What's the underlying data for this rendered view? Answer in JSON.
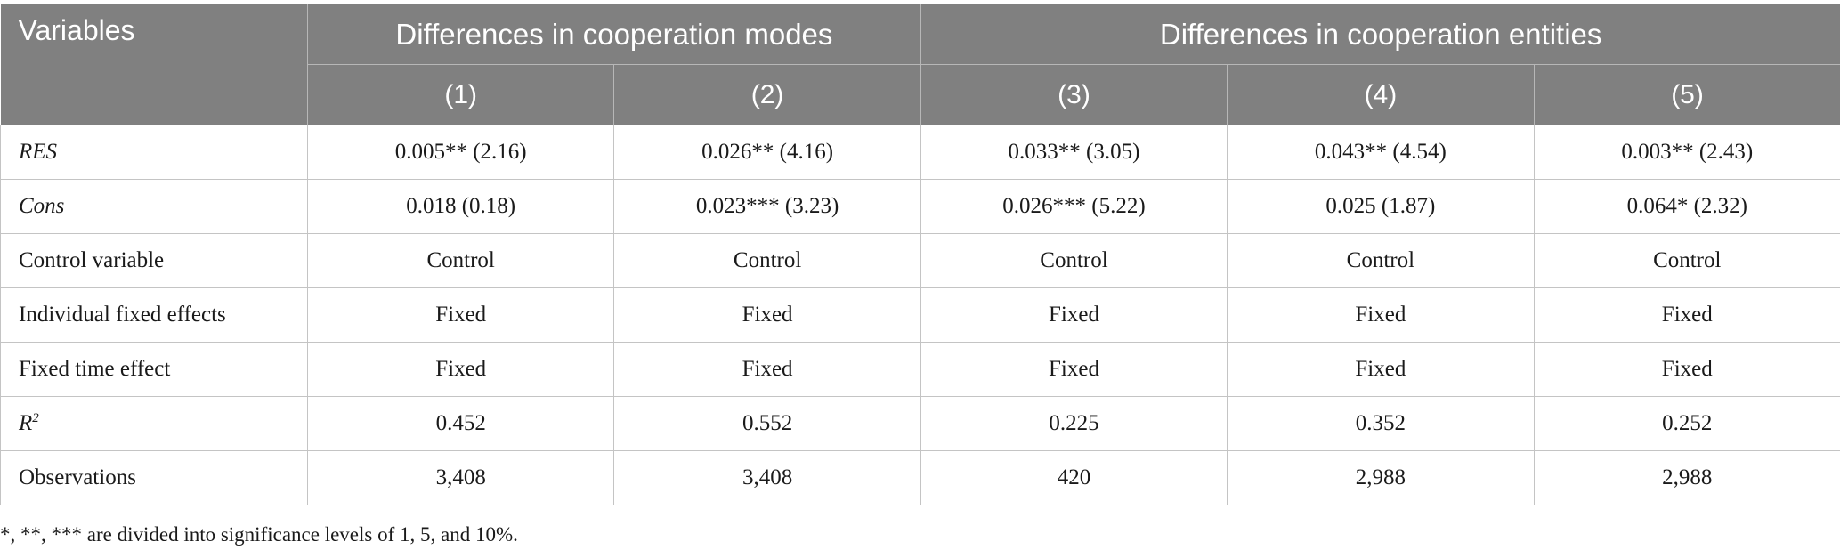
{
  "header": {
    "variables": "Variables",
    "group1": "Differences in cooperation modes",
    "group2": "Differences in cooperation entities",
    "columns": [
      "(1)",
      "(2)",
      "(3)",
      "(4)",
      "(5)"
    ]
  },
  "rows": [
    {
      "label": "RES",
      "values": [
        "0.005** (2.16)",
        "0.026** (4.16)",
        "0.033** (3.05)",
        "0.043** (4.54)",
        "0.003** (2.43)"
      ]
    },
    {
      "label": "Cons",
      "values": [
        "0.018 (0.18)",
        "0.023*** (3.23)",
        "0.026*** (5.22)",
        "0.025 (1.87)",
        "0.064* (2.32)"
      ]
    },
    {
      "label": "Control variable",
      "values": [
        "Control",
        "Control",
        "Control",
        "Control",
        "Control"
      ]
    },
    {
      "label": "Individual fixed effects",
      "values": [
        "Fixed",
        "Fixed",
        "Fixed",
        "Fixed",
        "Fixed"
      ]
    },
    {
      "label": "Fixed time effect",
      "values": [
        "Fixed",
        "Fixed",
        "Fixed",
        "Fixed",
        "Fixed"
      ]
    },
    {
      "label": "R",
      "label_sup": "2",
      "values": [
        "0.452",
        "0.552",
        "0.225",
        "0.352",
        "0.252"
      ]
    },
    {
      "label": "Observations",
      "values": [
        "3,408",
        "3,408",
        "420",
        "2,988",
        "2,988"
      ]
    }
  ],
  "footnote": "*, **, *** are divided into significance levels of 1, 5, and 10%.",
  "colors": {
    "header_bg": "#808080",
    "header_text": "#ffffff",
    "grid": "#c4c4c4"
  }
}
